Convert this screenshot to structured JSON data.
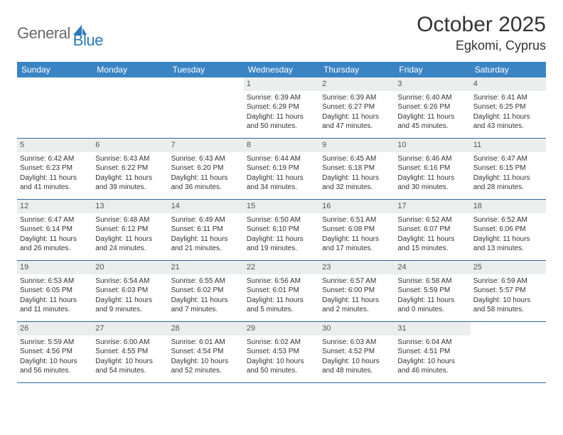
{
  "brand": {
    "name1": "General",
    "name2": "Blue"
  },
  "title": "October 2025",
  "location": "Egkomi, Cyprus",
  "colors": {
    "header_bg": "#3b84c4",
    "header_text": "#ffffff",
    "daynum_bg": "#eceded",
    "week_border": "#2f6a9e",
    "brand_gray": "#6a6a6a",
    "brand_blue": "#2d79b8"
  },
  "weekdays": [
    "Sunday",
    "Monday",
    "Tuesday",
    "Wednesday",
    "Thursday",
    "Friday",
    "Saturday"
  ],
  "weeks": [
    [
      {
        "n": "",
        "sr": "",
        "ss": "",
        "dl": ""
      },
      {
        "n": "",
        "sr": "",
        "ss": "",
        "dl": ""
      },
      {
        "n": "",
        "sr": "",
        "ss": "",
        "dl": ""
      },
      {
        "n": "1",
        "sr": "Sunrise: 6:39 AM",
        "ss": "Sunset: 6:29 PM",
        "dl": "Daylight: 11 hours and 50 minutes."
      },
      {
        "n": "2",
        "sr": "Sunrise: 6:39 AM",
        "ss": "Sunset: 6:27 PM",
        "dl": "Daylight: 11 hours and 47 minutes."
      },
      {
        "n": "3",
        "sr": "Sunrise: 6:40 AM",
        "ss": "Sunset: 6:26 PM",
        "dl": "Daylight: 11 hours and 45 minutes."
      },
      {
        "n": "4",
        "sr": "Sunrise: 6:41 AM",
        "ss": "Sunset: 6:25 PM",
        "dl": "Daylight: 11 hours and 43 minutes."
      }
    ],
    [
      {
        "n": "5",
        "sr": "Sunrise: 6:42 AM",
        "ss": "Sunset: 6:23 PM",
        "dl": "Daylight: 11 hours and 41 minutes."
      },
      {
        "n": "6",
        "sr": "Sunrise: 6:43 AM",
        "ss": "Sunset: 6:22 PM",
        "dl": "Daylight: 11 hours and 39 minutes."
      },
      {
        "n": "7",
        "sr": "Sunrise: 6:43 AM",
        "ss": "Sunset: 6:20 PM",
        "dl": "Daylight: 11 hours and 36 minutes."
      },
      {
        "n": "8",
        "sr": "Sunrise: 6:44 AM",
        "ss": "Sunset: 6:19 PM",
        "dl": "Daylight: 11 hours and 34 minutes."
      },
      {
        "n": "9",
        "sr": "Sunrise: 6:45 AM",
        "ss": "Sunset: 6:18 PM",
        "dl": "Daylight: 11 hours and 32 minutes."
      },
      {
        "n": "10",
        "sr": "Sunrise: 6:46 AM",
        "ss": "Sunset: 6:16 PM",
        "dl": "Daylight: 11 hours and 30 minutes."
      },
      {
        "n": "11",
        "sr": "Sunrise: 6:47 AM",
        "ss": "Sunset: 6:15 PM",
        "dl": "Daylight: 11 hours and 28 minutes."
      }
    ],
    [
      {
        "n": "12",
        "sr": "Sunrise: 6:47 AM",
        "ss": "Sunset: 6:14 PM",
        "dl": "Daylight: 11 hours and 26 minutes."
      },
      {
        "n": "13",
        "sr": "Sunrise: 6:48 AM",
        "ss": "Sunset: 6:12 PM",
        "dl": "Daylight: 11 hours and 24 minutes."
      },
      {
        "n": "14",
        "sr": "Sunrise: 6:49 AM",
        "ss": "Sunset: 6:11 PM",
        "dl": "Daylight: 11 hours and 21 minutes."
      },
      {
        "n": "15",
        "sr": "Sunrise: 6:50 AM",
        "ss": "Sunset: 6:10 PM",
        "dl": "Daylight: 11 hours and 19 minutes."
      },
      {
        "n": "16",
        "sr": "Sunrise: 6:51 AM",
        "ss": "Sunset: 6:08 PM",
        "dl": "Daylight: 11 hours and 17 minutes."
      },
      {
        "n": "17",
        "sr": "Sunrise: 6:52 AM",
        "ss": "Sunset: 6:07 PM",
        "dl": "Daylight: 11 hours and 15 minutes."
      },
      {
        "n": "18",
        "sr": "Sunrise: 6:52 AM",
        "ss": "Sunset: 6:06 PM",
        "dl": "Daylight: 11 hours and 13 minutes."
      }
    ],
    [
      {
        "n": "19",
        "sr": "Sunrise: 6:53 AM",
        "ss": "Sunset: 6:05 PM",
        "dl": "Daylight: 11 hours and 11 minutes."
      },
      {
        "n": "20",
        "sr": "Sunrise: 6:54 AM",
        "ss": "Sunset: 6:03 PM",
        "dl": "Daylight: 11 hours and 9 minutes."
      },
      {
        "n": "21",
        "sr": "Sunrise: 6:55 AM",
        "ss": "Sunset: 6:02 PM",
        "dl": "Daylight: 11 hours and 7 minutes."
      },
      {
        "n": "22",
        "sr": "Sunrise: 6:56 AM",
        "ss": "Sunset: 6:01 PM",
        "dl": "Daylight: 11 hours and 5 minutes."
      },
      {
        "n": "23",
        "sr": "Sunrise: 6:57 AM",
        "ss": "Sunset: 6:00 PM",
        "dl": "Daylight: 11 hours and 2 minutes."
      },
      {
        "n": "24",
        "sr": "Sunrise: 6:58 AM",
        "ss": "Sunset: 5:59 PM",
        "dl": "Daylight: 11 hours and 0 minutes."
      },
      {
        "n": "25",
        "sr": "Sunrise: 6:59 AM",
        "ss": "Sunset: 5:57 PM",
        "dl": "Daylight: 10 hours and 58 minutes."
      }
    ],
    [
      {
        "n": "26",
        "sr": "Sunrise: 5:59 AM",
        "ss": "Sunset: 4:56 PM",
        "dl": "Daylight: 10 hours and 56 minutes."
      },
      {
        "n": "27",
        "sr": "Sunrise: 6:00 AM",
        "ss": "Sunset: 4:55 PM",
        "dl": "Daylight: 10 hours and 54 minutes."
      },
      {
        "n": "28",
        "sr": "Sunrise: 6:01 AM",
        "ss": "Sunset: 4:54 PM",
        "dl": "Daylight: 10 hours and 52 minutes."
      },
      {
        "n": "29",
        "sr": "Sunrise: 6:02 AM",
        "ss": "Sunset: 4:53 PM",
        "dl": "Daylight: 10 hours and 50 minutes."
      },
      {
        "n": "30",
        "sr": "Sunrise: 6:03 AM",
        "ss": "Sunset: 4:52 PM",
        "dl": "Daylight: 10 hours and 48 minutes."
      },
      {
        "n": "31",
        "sr": "Sunrise: 6:04 AM",
        "ss": "Sunset: 4:51 PM",
        "dl": "Daylight: 10 hours and 46 minutes."
      },
      {
        "n": "",
        "sr": "",
        "ss": "",
        "dl": ""
      }
    ]
  ]
}
